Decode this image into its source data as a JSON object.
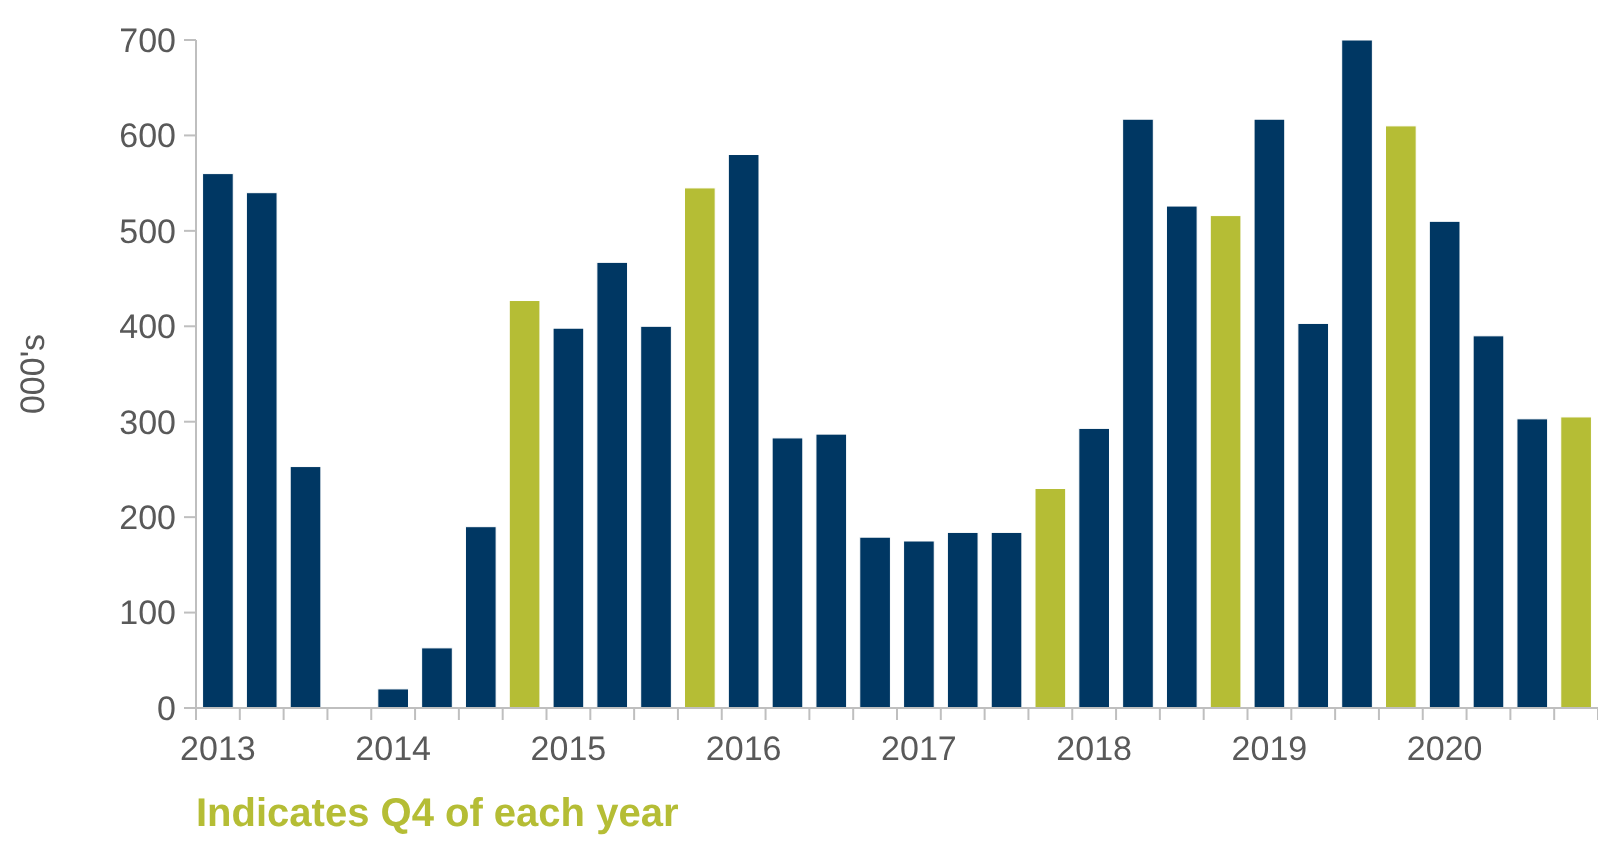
{
  "chart_data": {
    "type": "bar",
    "ylabel": "000's",
    "categories": [
      "2013",
      null,
      null,
      null,
      "2014",
      null,
      null,
      null,
      "2015",
      null,
      null,
      null,
      "2016",
      null,
      null,
      null,
      "2017",
      null,
      null,
      null,
      "2018",
      null,
      null,
      null,
      "2019",
      null,
      null,
      null,
      "2020",
      null,
      null,
      null
    ],
    "values": [
      560,
      540,
      253,
      null,
      20,
      63,
      190,
      427,
      398,
      467,
      400,
      545,
      580,
      283,
      287,
      179,
      175,
      184,
      184,
      230,
      293,
      617,
      526,
      516,
      617,
      403,
      700,
      610,
      510,
      390,
      303,
      305
    ],
    "colors": [
      "#003763",
      "#003763",
      "#003763",
      null,
      "#003763",
      "#003763",
      "#003763",
      "#b5bd35",
      "#003763",
      "#003763",
      "#003763",
      "#b5bd35",
      "#003763",
      "#003763",
      "#003763",
      "#003763",
      "#003763",
      "#003763",
      "#003763",
      "#b5bd35",
      "#003763",
      "#003763",
      "#003763",
      "#b5bd35",
      "#003763",
      "#003763",
      "#003763",
      "#b5bd35",
      "#003763",
      "#003763",
      "#003763",
      "#b5bd35"
    ],
    "ylim": [
      0,
      700
    ],
    "yticks": [
      0,
      100,
      200,
      300,
      400,
      500,
      600,
      700
    ],
    "grid": false,
    "annotations": [
      "Indicates Q4 of each year"
    ]
  }
}
